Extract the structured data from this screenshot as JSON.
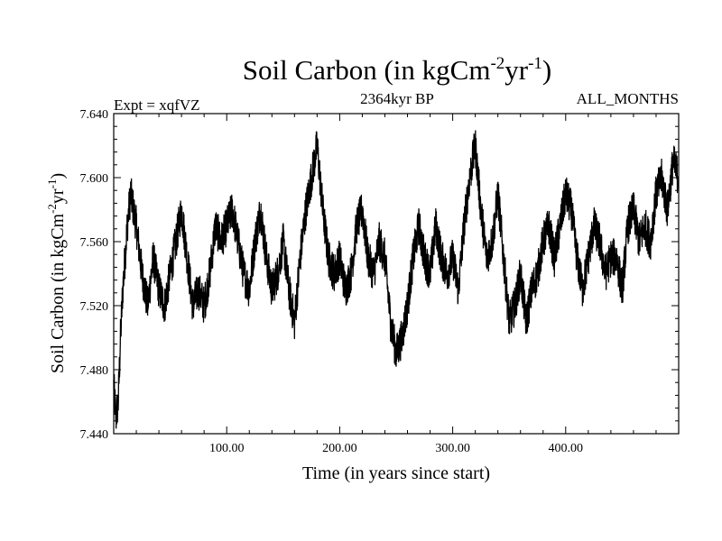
{
  "chart_data": {
    "type": "line",
    "title": {
      "main": "Soil Carbon (in kgCm",
      "sup1": "-2",
      "mid": "yr",
      "sup2": "-1",
      "end": ")"
    },
    "subtitle_left": "Expt = xqfVZ",
    "subtitle_center": "2364kyr BP",
    "subtitle_right": "ALL_MONTHS",
    "xlabel": "Time (in years since start)",
    "ylabel": {
      "main": "Soil Carbon (in kgCm",
      "sup1": "-2",
      "mid": "yr",
      "sup2": "-1",
      "end": ")"
    },
    "xlim": [
      0,
      500
    ],
    "ylim": [
      7.44,
      7.64
    ],
    "x_ticks": [
      100,
      200,
      300,
      400
    ],
    "x_tick_labels": [
      "100.00",
      "200.00",
      "300.00",
      "400.00"
    ],
    "y_ticks": [
      7.44,
      7.48,
      7.52,
      7.56,
      7.6,
      7.64
    ],
    "y_tick_labels": [
      "7.440",
      "7.480",
      "7.520",
      "7.560",
      "7.600",
      "7.640"
    ],
    "line_color": "#000000",
    "grid": false,
    "series": [
      {
        "x": [
          0,
          2,
          4,
          6,
          8,
          10,
          12,
          15,
          20,
          25,
          30,
          35,
          40,
          45,
          50,
          55,
          60,
          65,
          70,
          75,
          80,
          85,
          90,
          95,
          100,
          105,
          110,
          115,
          120,
          125,
          130,
          135,
          140,
          145,
          150,
          155,
          160,
          165,
          170,
          175,
          180,
          185,
          190,
          195,
          200,
          205,
          210,
          215,
          220,
          225,
          230,
          235,
          240,
          245,
          250,
          255,
          260,
          265,
          270,
          275,
          280,
          285,
          290,
          295,
          300,
          305,
          310,
          315,
          320,
          325,
          330,
          335,
          340,
          345,
          350,
          355,
          360,
          365,
          370,
          375,
          380,
          385,
          390,
          395,
          400,
          405,
          410,
          415,
          420,
          425,
          430,
          435,
          440,
          445,
          450,
          455,
          460,
          465,
          470,
          475,
          480,
          485,
          490,
          495,
          500
        ],
        "y": [
          7.47,
          7.45,
          7.46,
          7.5,
          7.53,
          7.55,
          7.57,
          7.59,
          7.57,
          7.54,
          7.52,
          7.55,
          7.53,
          7.52,
          7.54,
          7.56,
          7.58,
          7.55,
          7.52,
          7.53,
          7.52,
          7.54,
          7.57,
          7.56,
          7.57,
          7.58,
          7.56,
          7.54,
          7.53,
          7.56,
          7.58,
          7.55,
          7.53,
          7.54,
          7.56,
          7.53,
          7.51,
          7.55,
          7.58,
          7.6,
          7.62,
          7.58,
          7.55,
          7.54,
          7.55,
          7.53,
          7.54,
          7.57,
          7.58,
          7.55,
          7.54,
          7.56,
          7.55,
          7.51,
          7.49,
          7.5,
          7.52,
          7.55,
          7.57,
          7.55,
          7.54,
          7.57,
          7.55,
          7.54,
          7.55,
          7.53,
          7.57,
          7.6,
          7.62,
          7.58,
          7.55,
          7.56,
          7.59,
          7.55,
          7.51,
          7.52,
          7.54,
          7.51,
          7.53,
          7.54,
          7.56,
          7.57,
          7.55,
          7.57,
          7.59,
          7.58,
          7.55,
          7.53,
          7.55,
          7.57,
          7.56,
          7.54,
          7.55,
          7.55,
          7.53,
          7.57,
          7.58,
          7.56,
          7.57,
          7.56,
          7.59,
          7.6,
          7.58,
          7.61,
          7.6
        ]
      }
    ]
  }
}
